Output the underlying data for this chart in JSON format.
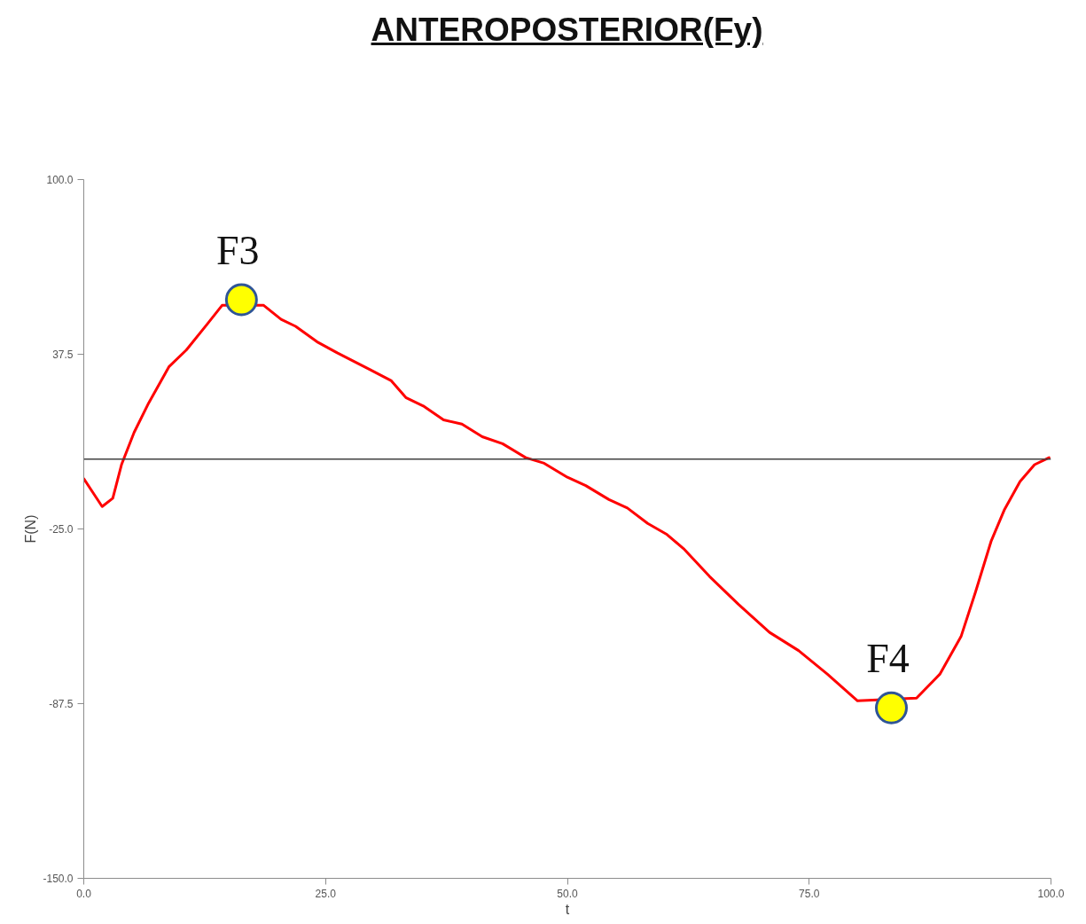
{
  "chart_data": {
    "type": "line",
    "title": "ANTEROPOSTERIOR(Fy)",
    "xlabel": "t",
    "ylabel": "F(N)",
    "xlim": [
      0,
      100
    ],
    "ylim": [
      -150,
      100
    ],
    "xticks": [
      {
        "value": 0,
        "label": "0.0"
      },
      {
        "value": 25,
        "label": "25.0"
      },
      {
        "value": 50,
        "label": "50.0"
      },
      {
        "value": 75,
        "label": "75.0"
      },
      {
        "value": 100,
        "label": "100.0"
      }
    ],
    "yticks": [
      {
        "value": -150,
        "label": "-150.0"
      },
      {
        "value": -87.5,
        "label": "-87.5"
      },
      {
        "value": -25,
        "label": "-25.0"
      },
      {
        "value": 37.5,
        "label": "37.5"
      },
      {
        "value": 100,
        "label": "100.0"
      }
    ],
    "series": [
      {
        "color": "#ff0000",
        "x": [
          0,
          1.9,
          3.0,
          3.9,
          5.2,
          6.7,
          8.8,
          10.6,
          12.7,
          14.3,
          18.6,
          20.4,
          21.9,
          24.1,
          26.2,
          29.6,
          31.8,
          33.3,
          35.1,
          37.2,
          39.1,
          41.2,
          43.3,
          45.7,
          47.6,
          50.0,
          51.9,
          54.3,
          56.2,
          58.3,
          60.3,
          62.0,
          64.7,
          67.7,
          70.9,
          73.9,
          76.9,
          80.0,
          86.1,
          88.5,
          90.7,
          92.2,
          93.8,
          95.2,
          96.8,
          98.3,
          99.8
        ],
        "values": [
          -7,
          -17,
          -14,
          -2,
          9.5,
          20,
          33,
          39,
          48,
          55,
          55,
          50,
          47.5,
          42,
          38,
          32,
          28,
          22,
          19,
          14,
          12.5,
          8,
          5.5,
          0.5,
          -1.5,
          -6.5,
          -9.5,
          -14.5,
          -17.5,
          -23,
          -27,
          -32,
          -42,
          -52,
          -62,
          -68.5,
          -77,
          -86.5,
          -85.5,
          -77,
          -63.5,
          -47.5,
          -29.5,
          -18,
          -8,
          -2,
          0.5
        ]
      },
      {
        "type": "scatter",
        "color": "#ffff00",
        "marker": "circle",
        "x": [
          16.3,
          83.5
        ],
        "values": [
          57,
          -89
        ]
      }
    ],
    "ref_lines": [
      {
        "axis": "y",
        "value": 0,
        "color": "#404040"
      }
    ],
    "annotations": [
      {
        "text": "F3",
        "x": 16.3,
        "y": 57
      },
      {
        "text": "F4",
        "x": 83.5,
        "y": -89
      }
    ]
  }
}
